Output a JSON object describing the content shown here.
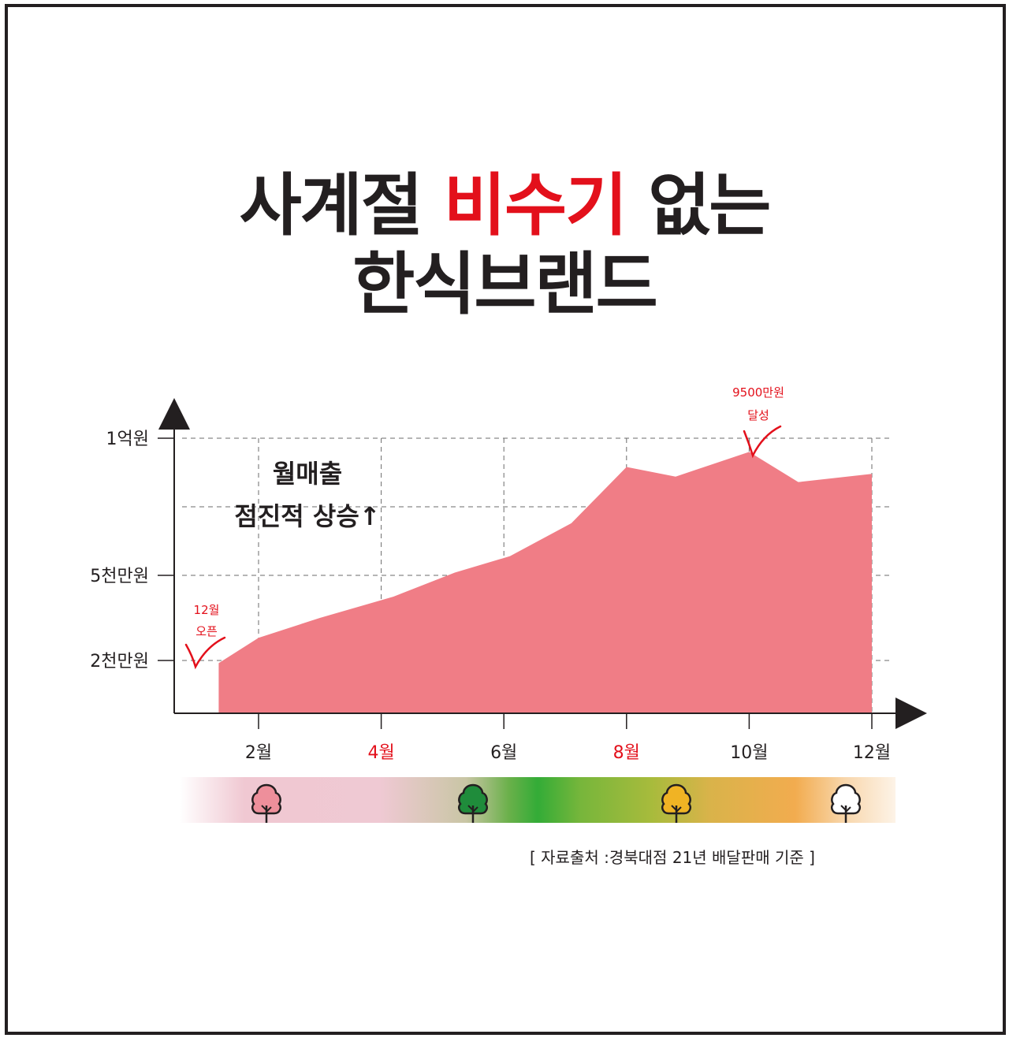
{
  "title": {
    "line1_prefix": "사계절 ",
    "line1_highlight": "비수기",
    "line1_suffix": " 없는",
    "line2": "한식브랜드"
  },
  "colors": {
    "accent_red": "#e3101b",
    "area_fill": "#f07d86",
    "text_dark": "#231f20"
  },
  "chart_data": {
    "type": "area",
    "x": [
      1.35,
      2,
      3,
      4.2,
      5.2,
      6.1,
      7.1,
      8,
      8.8,
      10,
      10.8,
      12
    ],
    "values": [
      1900,
      2800,
      3500,
      4250,
      5100,
      5700,
      6900,
      8950,
      8600,
      9500,
      8400,
      8700
    ],
    "y_unit": "만원",
    "ylim": [
      0,
      10000
    ],
    "xlim": [
      0.7,
      12.2
    ],
    "y_ticks": [
      {
        "value": 10000,
        "label": "1억원"
      },
      {
        "value": 5000,
        "label": "5천만원"
      },
      {
        "value": 2000,
        "label": "2천만원"
      }
    ],
    "y_grid_extra": [
      7500
    ],
    "x_ticks": [
      {
        "value": 2,
        "label": "2월",
        "highlight": false
      },
      {
        "value": 4,
        "label": "4월",
        "highlight": true
      },
      {
        "value": 6,
        "label": "6월",
        "highlight": false
      },
      {
        "value": 8,
        "label": "8월",
        "highlight": true
      },
      {
        "value": 10,
        "label": "10월",
        "highlight": false
      },
      {
        "value": 12,
        "label": "12월",
        "highlight": false
      }
    ],
    "grid": true,
    "annotations": {
      "main_line1": "월매출",
      "main_line2": "점진적 상승↑",
      "start_line1": "12월",
      "start_line2": "오픈",
      "peak_line1": "9500만원",
      "peak_line2": "달성"
    }
  },
  "seasons": [
    {
      "name": "spring",
      "icon": "pink-tree-icon",
      "color": "#ee8f9b"
    },
    {
      "name": "summer",
      "icon": "green-tree-icon",
      "color": "#1f8c3b"
    },
    {
      "name": "autumn",
      "icon": "yellow-tree-icon",
      "color": "#f0b324"
    },
    {
      "name": "winter",
      "icon": "white-tree-icon",
      "color": "#ffffff"
    }
  ],
  "source": "[ 자료출처 :경북대점 21년 배달판매 기준 ]"
}
